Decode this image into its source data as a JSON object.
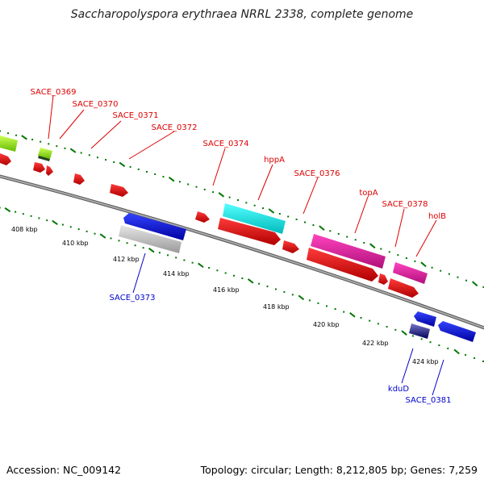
{
  "title": "Saccharopolyspora erythraea NRRL 2338, complete genome",
  "footer": {
    "accession": "Accession: NC_009142",
    "topology": "Topology: circular; Length: 8,212,805 bp; Genes: 7,259"
  },
  "scale_labels": [
    "408 kbp",
    "410 kbp",
    "412 kbp",
    "414 kbp",
    "416 kbp",
    "418 kbp",
    "420 kbp",
    "422 kbp",
    "424 kbp"
  ],
  "gene_labels": {
    "SACE_0369": "SACE_0369",
    "SACE_0370": "SACE_0370",
    "SACE_0371": "SACE_0371",
    "SACE_0372": "SACE_0372",
    "SACE_0374": "SACE_0374",
    "hppA": "hppA",
    "SACE_0376": "SACE_0376",
    "topA": "topA",
    "SACE_0378": "SACE_0378",
    "holB": "holB",
    "SACE_0373": "SACE_0373",
    "kduD": "kduD",
    "SACE_0381": "SACE_0381"
  },
  "colors": {
    "forward_label": "#dd0000",
    "reverse_label": "#0000cc",
    "backbone": "#888888",
    "tick": "#007700",
    "red": "#ee1111",
    "cyan": "#22eeee",
    "magenta": "#ee22aa",
    "blue": "#1111dd",
    "lime": "#99ee22",
    "grey": "#bbbbbb"
  }
}
